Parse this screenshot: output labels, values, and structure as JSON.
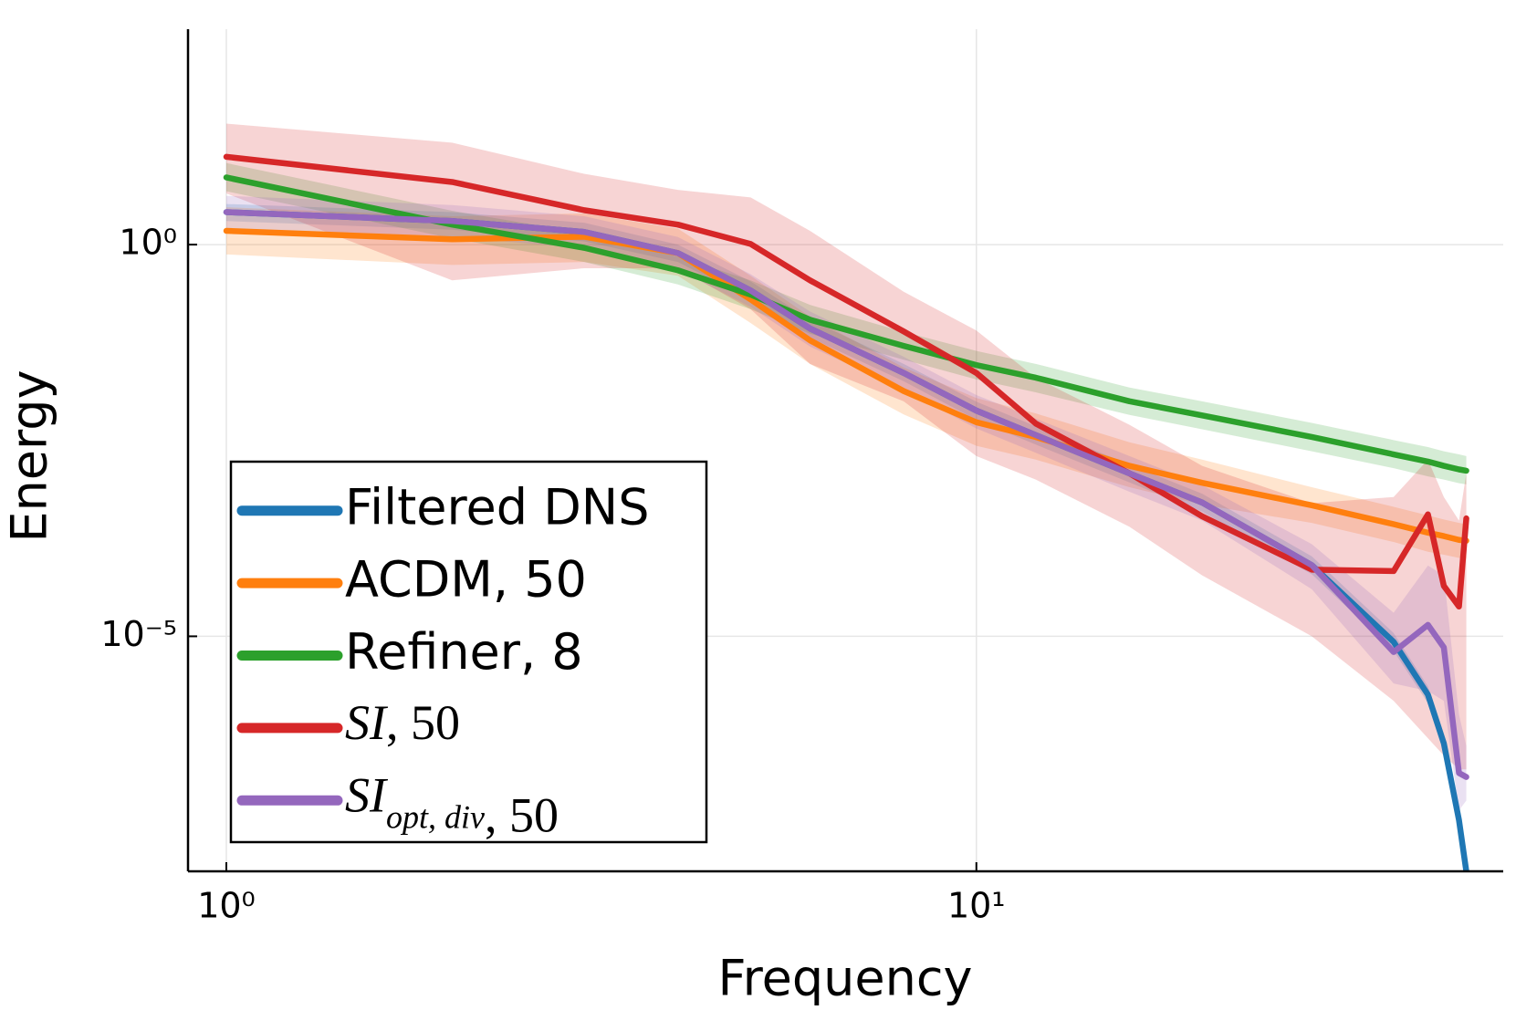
{
  "chart_data": {
    "type": "line",
    "xlabel": "Frequency",
    "ylabel": "Energy",
    "xscale": "log",
    "yscale": "log",
    "grid": true,
    "legend": "lower left",
    "xlim": [
      0.889,
      50.4
    ],
    "ylim": [
      1e-08,
      562
    ],
    "xticks": [
      {
        "value": 1,
        "label": "10⁰"
      },
      {
        "value": 10,
        "label": "10¹"
      }
    ],
    "yticks": [
      {
        "value": 1e-05,
        "label": "10⁻⁵"
      },
      {
        "value": 1,
        "label": "10⁰"
      }
    ],
    "x": [
      1,
      2,
      3,
      4,
      5,
      6,
      8,
      10,
      12,
      16,
      20,
      28,
      36,
      40,
      42,
      44,
      45
    ],
    "series": [
      {
        "name": "Filtered DNS",
        "color": "#1f77b4",
        "values": [
          2.6,
          2.0,
          1.45,
          0.78,
          0.26,
          0.085,
          0.023,
          0.0076,
          0.0037,
          0.0012,
          0.00051,
          8.1e-05,
          8.5e-06,
          1.8e-06,
          4.3e-07,
          4.5e-08,
          1e-08
        ],
        "band_upper": [
          3.3,
          2.6,
          1.9,
          1.0,
          0.34,
          0.11,
          0.03,
          0.0099,
          0.0048,
          0.00156,
          0.00066,
          0.000105,
          1.1e-05,
          2.3e-06,
          5.6e-07,
          6e-08,
          1.3e-08
        ],
        "band_lower": [
          2.0,
          1.55,
          1.1,
          0.6,
          0.2,
          0.065,
          0.018,
          0.0058,
          0.0028,
          0.00092,
          0.00039,
          6.2e-05,
          6.5e-06,
          1.4e-06,
          3.3e-07,
          3.5e-08,
          7.7e-09
        ]
      },
      {
        "name": "ACDM, 50",
        "color": "#ff7f0e",
        "values": [
          1.5,
          1.17,
          1.26,
          0.78,
          0.2,
          0.06,
          0.0135,
          0.0054,
          0.0035,
          0.0015,
          0.00091,
          0.00047,
          0.00027,
          0.00021,
          0.00019,
          0.00017,
          0.000166
        ],
        "band_upper": [
          3,
          2.3,
          2.5,
          1.6,
          0.4,
          0.12,
          0.027,
          0.011,
          0.007,
          0.003,
          0.0018,
          0.0008,
          0.00045,
          0.00035,
          0.00031,
          0.00028,
          0.00027
        ],
        "band_lower": [
          0.75,
          0.55,
          0.6,
          0.4,
          0.1,
          0.03,
          0.0068,
          0.0027,
          0.0018,
          0.0008,
          0.00048,
          0.00028,
          0.00016,
          0.00012,
          0.00011,
          0.0001,
          9.8e-05
        ]
      },
      {
        "name": "Refiner, 8",
        "color": "#2ca02c",
        "values": [
          7.2,
          1.8,
          0.91,
          0.47,
          0.23,
          0.11,
          0.051,
          0.029,
          0.02,
          0.01,
          0.0066,
          0.0035,
          0.0021,
          0.0017,
          0.0015,
          0.00135,
          0.0013
        ],
        "band_upper": [
          11,
          2.7,
          1.4,
          0.7,
          0.35,
          0.17,
          0.077,
          0.044,
          0.03,
          0.015,
          0.01,
          0.0053,
          0.0032,
          0.0026,
          0.0023,
          0.0021,
          0.002
        ],
        "band_lower": [
          4.8,
          1.2,
          0.6,
          0.31,
          0.15,
          0.073,
          0.034,
          0.019,
          0.013,
          0.0067,
          0.0044,
          0.0023,
          0.0014,
          0.0011,
          0.001,
          0.0009,
          0.00087
        ]
      },
      {
        "name": "SI, 50",
        "color": "#d62728",
        "math": true,
        "values": [
          13.2,
          6.3,
          2.75,
          1.8,
          1.02,
          0.35,
          0.078,
          0.023,
          0.0052,
          0.0012,
          0.00034,
          7.1e-05,
          6.8e-05,
          0.00036,
          4.4e-05,
          2.4e-05,
          0.00032
        ],
        "band_upper": [
          35,
          20,
          8,
          5,
          4,
          1.5,
          0.25,
          0.08,
          0.02,
          0.005,
          0.0015,
          0.0005,
          0.0006,
          0.0018,
          0.0006,
          0.0003,
          0.0012
        ],
        "band_lower": [
          4.5,
          0.35,
          0.5,
          0.5,
          0.15,
          0.03,
          0.01,
          0.002,
          0.001,
          0.00025,
          6e-05,
          1e-05,
          1.5e-06,
          5e-07,
          3e-07,
          2e-07,
          2e-07
        ]
      },
      {
        "name": "SI_{opt, div}, 50",
        "color": "#9467bd",
        "math": true,
        "values": [
          2.6,
          2.0,
          1.45,
          0.78,
          0.26,
          0.085,
          0.023,
          0.0076,
          0.0037,
          0.0012,
          0.00051,
          8.1e-05,
          6.3e-06,
          1.4e-05,
          7.2e-06,
          1.8e-07,
          1.6e-07
        ],
        "band_upper": [
          4.2,
          3.2,
          2.3,
          1.25,
          0.42,
          0.14,
          0.037,
          0.012,
          0.006,
          0.002,
          0.00085,
          0.00015,
          2e-05,
          8e-05,
          6e-05,
          1e-06,
          4e-07
        ],
        "band_lower": [
          1.6,
          1.25,
          0.9,
          0.48,
          0.16,
          0.05,
          0.014,
          0.0045,
          0.0022,
          0.0007,
          0.0003,
          4e-05,
          2.5e-06,
          2e-06,
          1.5e-06,
          6e-08,
          8e-08
        ]
      }
    ]
  }
}
